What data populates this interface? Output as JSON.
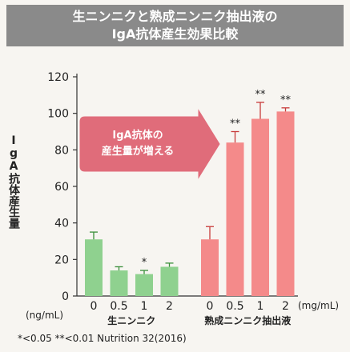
{
  "header": {
    "line1": "生ニンニクと熟成ニンニク抽出液の",
    "line2": "IgA抗体産生効果比較"
  },
  "callout": {
    "line1": "IgA抗体の",
    "line2": "産生量が増える"
  },
  "footer": "*<0.05 **<0.01  Nutrition 32(2016)",
  "chart_data": {
    "type": "bar",
    "ylabel": "IgA抗体産生量",
    "y_unit": "(ng/mL)",
    "x_unit": "(mg/mL)",
    "ylim": [
      0,
      120
    ],
    "yticks": [
      0,
      20,
      40,
      60,
      80,
      100,
      120
    ],
    "groups": [
      {
        "name": "生ニンニク",
        "color": "#8fd18f",
        "errcolor": "#3a8f3a",
        "categories": [
          "0",
          "0.5",
          "1",
          "2"
        ],
        "values": [
          31,
          14,
          12,
          16
        ],
        "errors": [
          4,
          2,
          2,
          2
        ],
        "significance": [
          "",
          "",
          "*",
          ""
        ]
      },
      {
        "name": "熟成ニンニク抽出液",
        "color": "#f48a8a",
        "errcolor": "#c83a3a",
        "categories": [
          "0",
          "0.5",
          "1",
          "2"
        ],
        "values": [
          31,
          84,
          97,
          101
        ],
        "errors": [
          7,
          6,
          9,
          2
        ],
        "significance": [
          "",
          "**",
          "**",
          "**"
        ]
      }
    ]
  }
}
